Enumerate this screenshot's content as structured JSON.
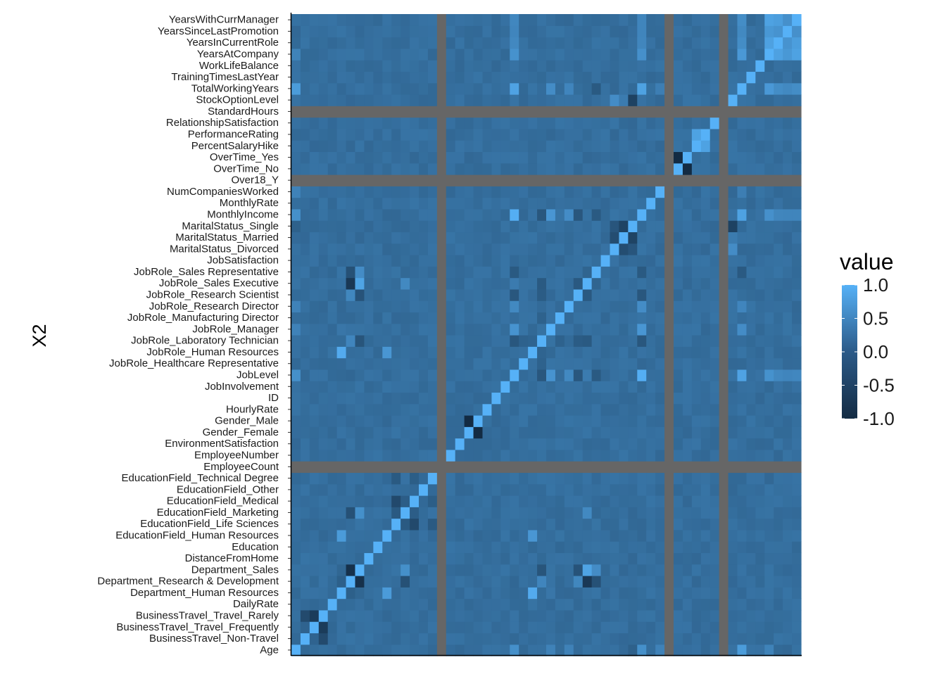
{
  "chart_data": {
    "type": "heatmap",
    "title": "",
    "xlabel": "",
    "ylabel": "X2",
    "x_tick_labels_visible": false,
    "grid": false,
    "na_color": "#666666",
    "variables": [
      "Age",
      "BusinessTravel_Non-Travel",
      "BusinessTravel_Travel_Frequently",
      "BusinessTravel_Travel_Rarely",
      "DailyRate",
      "Department_Human Resources",
      "Department_Research & Development",
      "Department_Sales",
      "DistanceFromHome",
      "Education",
      "EducationField_Human Resources",
      "EducationField_Life Sciences",
      "EducationField_Marketing",
      "EducationField_Medical",
      "EducationField_Other",
      "EducationField_Technical Degree",
      "EmployeeCount",
      "EmployeeNumber",
      "EnvironmentSatisfaction",
      "Gender_Female",
      "Gender_Male",
      "HourlyRate",
      "ID",
      "JobInvolvement",
      "JobLevel",
      "JobRole_Healthcare Representative",
      "JobRole_Human Resources",
      "JobRole_Laboratory Technician",
      "JobRole_Manager",
      "JobRole_Manufacturing Director",
      "JobRole_Research Director",
      "JobRole_Research Scientist",
      "JobRole_Sales Executive",
      "JobRole_Sales Representative",
      "JobSatisfaction",
      "MaritalStatus_Divorced",
      "MaritalStatus_Married",
      "MaritalStatus_Single",
      "MonthlyIncome",
      "MonthlyRate",
      "NumCompaniesWorked",
      "Over18_Y",
      "OverTime_No",
      "OverTime_Yes",
      "PercentSalaryHike",
      "PerformanceRating",
      "RelationshipSatisfaction",
      "StandardHours",
      "StockOptionLevel",
      "TotalWorkingYears",
      "TrainingTimesLastYear",
      "WorkLifeBalance",
      "YearsAtCompany",
      "YearsInCurrentRole",
      "YearsSinceLastPromotion",
      "YearsWithCurrManager"
    ],
    "na_variables": [
      "EmployeeCount",
      "Over18_Y",
      "StandardHours"
    ],
    "correlations": [
      {
        "a": "BusinessTravel_Non-Travel",
        "b": "BusinessTravel_Travel_Frequently",
        "r": -0.16
      },
      {
        "a": "BusinessTravel_Non-Travel",
        "b": "BusinessTravel_Travel_Rarely",
        "r": -0.53
      },
      {
        "a": "BusinessTravel_Travel_Frequently",
        "b": "BusinessTravel_Travel_Rarely",
        "r": -0.75
      },
      {
        "a": "Department_Human Resources",
        "b": "Department_Research & Development",
        "r": -0.21
      },
      {
        "a": "Department_Human Resources",
        "b": "Department_Sales",
        "r": -0.11
      },
      {
        "a": "Department_Research & Development",
        "b": "Department_Sales",
        "r": -0.91
      },
      {
        "a": "Department_Human Resources",
        "b": "EducationField_Human Resources",
        "r": 0.67
      },
      {
        "a": "Department_Human Resources",
        "b": "JobRole_Human Resources",
        "r": 0.9
      },
      {
        "a": "Department_Human Resources",
        "b": "JobRole_Manager",
        "r": 0.12
      },
      {
        "a": "Department_Research & Development",
        "b": "EducationField_Marketing",
        "r": -0.43
      },
      {
        "a": "Department_Research & Development",
        "b": "JobRole_Laboratory Technician",
        "r": 0.35
      },
      {
        "a": "Department_Research & Development",
        "b": "JobRole_Research Scientist",
        "r": 0.37
      },
      {
        "a": "Department_Research & Development",
        "b": "JobRole_Sales Executive",
        "r": -0.8
      },
      {
        "a": "Department_Research & Development",
        "b": "JobRole_Sales Representative",
        "r": -0.43
      },
      {
        "a": "Department_Sales",
        "b": "EducationField_Marketing",
        "r": 0.5
      },
      {
        "a": "Department_Sales",
        "b": "JobRole_Sales Executive",
        "r": 0.8
      },
      {
        "a": "Department_Sales",
        "b": "JobRole_Sales Representative",
        "r": 0.45
      },
      {
        "a": "Department_Sales",
        "b": "JobRole_Research Scientist",
        "r": -0.4
      },
      {
        "a": "Department_Sales",
        "b": "JobRole_Laboratory Technician",
        "r": -0.38
      },
      {
        "a": "EducationField_Human Resources",
        "b": "JobRole_Human Resources",
        "r": 0.6
      },
      {
        "a": "EducationField_Life Sciences",
        "b": "EducationField_Medical",
        "r": -0.55
      },
      {
        "a": "EducationField_Life Sciences",
        "b": "EducationField_Marketing",
        "r": -0.3
      },
      {
        "a": "EducationField_Life Sciences",
        "b": "EducationField_Technical Degree",
        "r": -0.3
      },
      {
        "a": "EducationField_Medical",
        "b": "EducationField_Marketing",
        "r": -0.25
      },
      {
        "a": "EducationField_Medical",
        "b": "EducationField_Technical Degree",
        "r": -0.24
      },
      {
        "a": "EducationField_Marketing",
        "b": "JobRole_Sales Executive",
        "r": 0.4
      },
      {
        "a": "Gender_Female",
        "b": "Gender_Male",
        "r": -1.0
      },
      {
        "a": "Age",
        "b": "JobLevel",
        "r": 0.5
      },
      {
        "a": "Age",
        "b": "MonthlyIncome",
        "r": 0.5
      },
      {
        "a": "Age",
        "b": "TotalWorkingYears",
        "r": 0.68
      },
      {
        "a": "Age",
        "b": "YearsAtCompany",
        "r": 0.31
      },
      {
        "a": "Age",
        "b": "NumCompaniesWorked",
        "r": 0.3
      },
      {
        "a": "Age",
        "b": "JobRole_Manager",
        "r": 0.3
      },
      {
        "a": "Age",
        "b": "JobRole_Research Director",
        "r": 0.3
      },
      {
        "a": "Age",
        "b": "MaritalStatus_Single",
        "r": -0.2
      },
      {
        "a": "JobLevel",
        "b": "MonthlyIncome",
        "r": 0.95
      },
      {
        "a": "JobLevel",
        "b": "TotalWorkingYears",
        "r": 0.78
      },
      {
        "a": "JobLevel",
        "b": "JobRole_Manager",
        "r": 0.55
      },
      {
        "a": "JobLevel",
        "b": "JobRole_Research Director",
        "r": 0.4
      },
      {
        "a": "JobLevel",
        "b": "JobRole_Sales Executive",
        "r": 0.2
      },
      {
        "a": "JobLevel",
        "b": "JobRole_Laboratory Technician",
        "r": -0.35
      },
      {
        "a": "JobLevel",
        "b": "JobRole_Research Scientist",
        "r": -0.35
      },
      {
        "a": "JobLevel",
        "b": "JobRole_Sales Representative",
        "r": -0.3
      },
      {
        "a": "JobLevel",
        "b": "YearsAtCompany",
        "r": 0.53
      },
      {
        "a": "JobLevel",
        "b": "YearsInCurrentRole",
        "r": 0.39
      },
      {
        "a": "JobLevel",
        "b": "YearsSinceLastPromotion",
        "r": 0.35
      },
      {
        "a": "JobLevel",
        "b": "YearsWithCurrManager",
        "r": 0.38
      },
      {
        "a": "JobLevel",
        "b": "Department_Research & Development",
        "r": -0.1
      },
      {
        "a": "MonthlyIncome",
        "b": "TotalWorkingYears",
        "r": 0.77
      },
      {
        "a": "MonthlyIncome",
        "b": "JobRole_Manager",
        "r": 0.6
      },
      {
        "a": "MonthlyIncome",
        "b": "JobRole_Research Director",
        "r": 0.45
      },
      {
        "a": "MonthlyIncome",
        "b": "JobRole_Laboratory Technician",
        "r": -0.35
      },
      {
        "a": "MonthlyIncome",
        "b": "JobRole_Research Scientist",
        "r": -0.35
      },
      {
        "a": "MonthlyIncome",
        "b": "JobRole_Sales Representative",
        "r": -0.3
      },
      {
        "a": "MonthlyIncome",
        "b": "YearsAtCompany",
        "r": 0.51
      },
      {
        "a": "MonthlyIncome",
        "b": "YearsInCurrentRole",
        "r": 0.36
      },
      {
        "a": "MonthlyIncome",
        "b": "YearsSinceLastPromotion",
        "r": 0.34
      },
      {
        "a": "MonthlyIncome",
        "b": "YearsWithCurrManager",
        "r": 0.34
      },
      {
        "a": "TotalWorkingYears",
        "b": "YearsAtCompany",
        "r": 0.63
      },
      {
        "a": "TotalWorkingYears",
        "b": "YearsInCurrentRole",
        "r": 0.46
      },
      {
        "a": "TotalWorkingYears",
        "b": "YearsSinceLastPromotion",
        "r": 0.4
      },
      {
        "a": "TotalWorkingYears",
        "b": "YearsWithCurrManager",
        "r": 0.46
      },
      {
        "a": "TotalWorkingYears",
        "b": "NumCompaniesWorked",
        "r": 0.24
      },
      {
        "a": "TotalWorkingYears",
        "b": "JobRole_Manager",
        "r": 0.45
      },
      {
        "a": "TotalWorkingYears",
        "b": "JobRole_Research Director",
        "r": 0.35
      },
      {
        "a": "TotalWorkingYears",
        "b": "JobRole_Sales Representative",
        "r": -0.3
      },
      {
        "a": "YearsAtCompany",
        "b": "YearsInCurrentRole",
        "r": 0.76
      },
      {
        "a": "YearsAtCompany",
        "b": "YearsSinceLastPromotion",
        "r": 0.62
      },
      {
        "a": "YearsAtCompany",
        "b": "YearsWithCurrManager",
        "r": 0.77
      },
      {
        "a": "YearsInCurrentRole",
        "b": "YearsSinceLastPromotion",
        "r": 0.55
      },
      {
        "a": "YearsInCurrentRole",
        "b": "YearsWithCurrManager",
        "r": 0.71
      },
      {
        "a": "YearsSinceLastPromotion",
        "b": "YearsWithCurrManager",
        "r": 0.51
      },
      {
        "a": "PercentSalaryHike",
        "b": "PerformanceRating",
        "r": 0.77
      },
      {
        "a": "OverTime_No",
        "b": "OverTime_Yes",
        "r": -1.0
      },
      {
        "a": "MaritalStatus_Divorced",
        "b": "MaritalStatus_Married",
        "r": -0.49
      },
      {
        "a": "MaritalStatus_Divorced",
        "b": "MaritalStatus_Single",
        "r": -0.37
      },
      {
        "a": "MaritalStatus_Married",
        "b": "MaritalStatus_Single",
        "r": -0.63
      },
      {
        "a": "MaritalStatus_Single",
        "b": "StockOptionLevel",
        "r": -0.66
      },
      {
        "a": "MaritalStatus_Married",
        "b": "StockOptionLevel",
        "r": 0.2
      },
      {
        "a": "MaritalStatus_Divorced",
        "b": "StockOptionLevel",
        "r": 0.45
      },
      {
        "a": "JobRole_Human Resources",
        "b": "JobRole_Laboratory Technician",
        "r": -0.15
      },
      {
        "a": "JobRole_Laboratory Technician",
        "b": "JobRole_Research Scientist",
        "r": -0.27
      },
      {
        "a": "JobRole_Laboratory Technician",
        "b": "JobRole_Sales Executive",
        "r": -0.3
      },
      {
        "a": "JobRole_Research Scientist",
        "b": "JobRole_Sales Executive",
        "r": -0.31
      },
      {
        "a": "JobRole_Healthcare Representative",
        "b": "JobRole_Laboratory Technician",
        "r": -0.18
      },
      {
        "a": "JobRole_Manufacturing Director",
        "b": "JobRole_Laboratory Technician",
        "r": -0.18
      },
      {
        "a": "JobRole_Sales Executive",
        "b": "JobRole_Sales Representative",
        "r": -0.14
      }
    ]
  },
  "legend": {
    "title": "value",
    "breaks": [
      "1.0",
      "0.5",
      "0.0",
      "-0.5",
      "-1.0"
    ]
  }
}
